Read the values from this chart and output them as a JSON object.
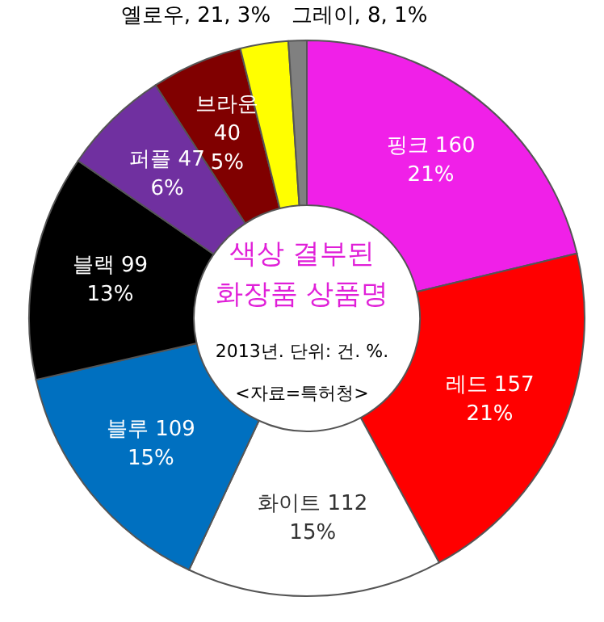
{
  "chart_data": {
    "type": "donut",
    "title": "색상 결부된 화장품 상품명",
    "subtitle": "2013년. 단위: 건. %.",
    "annotations": [
      "<자료=특허청>"
    ],
    "categories": [
      "핑크",
      "레드",
      "화이트",
      "블루",
      "블랙",
      "퍼플",
      "브라운",
      "옐로우",
      "그레이"
    ],
    "values": [
      160,
      157,
      112,
      109,
      99,
      47,
      40,
      21,
      8
    ],
    "colors": [
      "#f020e8",
      "#ff0000",
      "#ffffff",
      "#0070c0",
      "#000000",
      "#7030a0",
      "#800000",
      "#ffff00",
      "#808080"
    ],
    "value_labels": [
      "160\n21%",
      "157\n21%",
      "112\n15%",
      "109\n15%",
      "99\n13%",
      "47\n6%",
      "40\n5%",
      "21, 3%",
      "8, 1%"
    ]
  }
}
